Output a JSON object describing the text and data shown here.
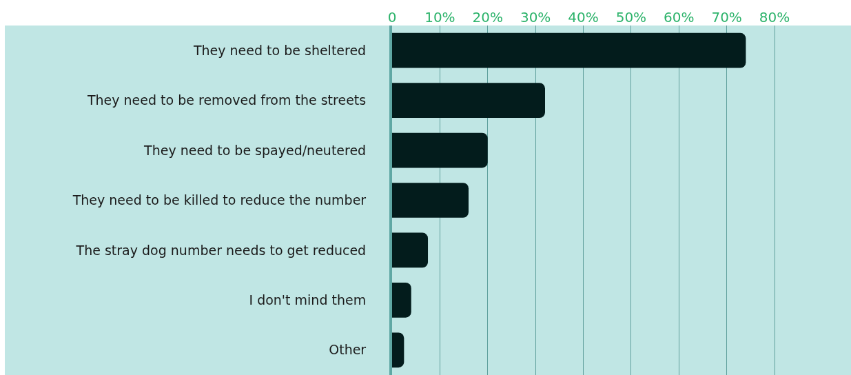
{
  "chart_data": {
    "type": "bar",
    "orientation": "horizontal",
    "categories": [
      "They need to be sheltered",
      "They need to be removed from the streets",
      "They need to be spayed/neutered",
      "They need to be killed to reduce the number",
      "The stray dog number needs to get reduced",
      "I don't mind them",
      "Other"
    ],
    "values": [
      74,
      32,
      20,
      16,
      7.5,
      4,
      2.5
    ],
    "color": "#031c1c",
    "xlim": [
      0,
      96
    ],
    "xticks": [
      0,
      {
        "value": 10,
        "label": "10%"
      },
      {
        "value": 20,
        "label": "20%"
      },
      {
        "value": 30,
        "label": "30%"
      },
      {
        "value": 40,
        "label": "40%"
      },
      {
        "value": 50,
        "label": "50%"
      },
      {
        "value": 60,
        "label": "60%"
      },
      {
        "value": 70,
        "label": "70%"
      },
      {
        "value": 80,
        "label": "80%"
      }
    ],
    "grid": "x"
  }
}
